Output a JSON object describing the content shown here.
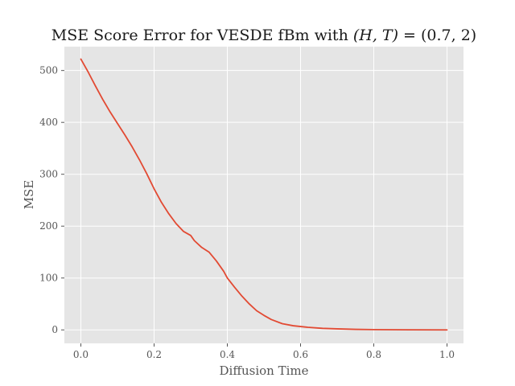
{
  "chart_data": {
    "type": "line",
    "title": "MSE Score Error for VESDE fBm with (H,T) = (0.7,2)",
    "xlabel": "Diffusion Time",
    "ylabel": "MSE",
    "xlim": [
      -0.045,
      1.045
    ],
    "ylim": [
      -26,
      546
    ],
    "xticks": [
      0.0,
      0.2,
      0.4,
      0.6,
      0.8,
      1.0
    ],
    "xtick_labels": [
      "0.0",
      "0.2",
      "0.4",
      "0.6",
      "0.8",
      "1.0"
    ],
    "yticks": [
      0,
      100,
      200,
      300,
      400,
      500
    ],
    "ytick_labels": [
      "0",
      "100",
      "200",
      "300",
      "400",
      "500"
    ],
    "grid": true,
    "colors": {
      "plot_background": "#e5e5e5",
      "grid": "#ffffff",
      "line": "#e24a33"
    },
    "series": [
      {
        "x": [
          0.0,
          0.02,
          0.04,
          0.06,
          0.08,
          0.1,
          0.12,
          0.14,
          0.16,
          0.18,
          0.2,
          0.22,
          0.24,
          0.26,
          0.28,
          0.3,
          0.31,
          0.33,
          0.35,
          0.37,
          0.39,
          0.4,
          0.42,
          0.44,
          0.46,
          0.48,
          0.5,
          0.52,
          0.55,
          0.58,
          0.62,
          0.66,
          0.7,
          0.75,
          0.8,
          0.9,
          1.0
        ],
        "y": [
          522,
          497,
          470,
          444,
          420,
          398,
          376,
          353,
          328,
          301,
          272,
          246,
          224,
          205,
          190,
          182,
          172,
          159,
          150,
          133,
          113,
          100,
          82,
          65,
          50,
          37,
          28,
          20,
          12,
          8,
          5,
          3,
          2,
          1,
          0.5,
          0.2,
          0
        ]
      }
    ]
  }
}
